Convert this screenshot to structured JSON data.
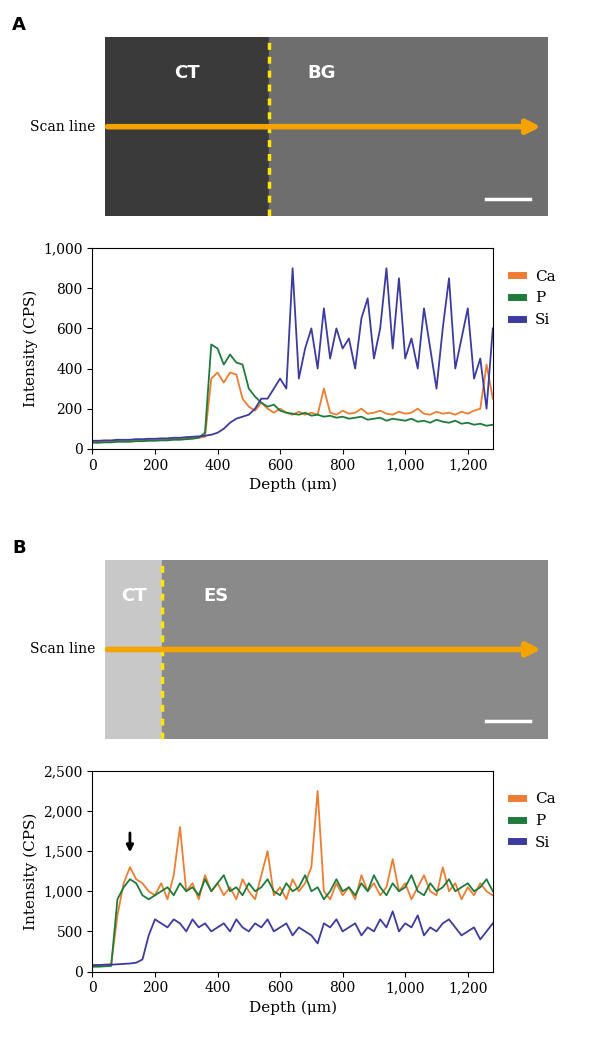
{
  "chart_data": [
    {
      "type": "line",
      "panel": "A",
      "image_text": {
        "left": "CT",
        "right": "BG",
        "scan": "Scan line"
      },
      "x_label": "Depth (μm)",
      "y_label": "Intensity (CPS)",
      "xlim": [
        0,
        1280
      ],
      "xticks": [
        0,
        200,
        400,
        600,
        800,
        {
          "value": 1000,
          "label": "1,000"
        },
        {
          "value": 1200,
          "label": "1,200"
        }
      ],
      "ylim": [
        0,
        1000
      ],
      "yticks": [
        0,
        200,
        400,
        600,
        800,
        {
          "value": 1000,
          "label": "1,000"
        }
      ],
      "legend": "right",
      "x": [
        0,
        20,
        40,
        60,
        80,
        100,
        120,
        140,
        160,
        180,
        200,
        220,
        240,
        260,
        280,
        300,
        320,
        340,
        360,
        380,
        400,
        420,
        440,
        460,
        480,
        500,
        520,
        540,
        560,
        580,
        600,
        620,
        640,
        660,
        680,
        700,
        720,
        740,
        760,
        780,
        800,
        820,
        840,
        860,
        880,
        900,
        920,
        940,
        960,
        980,
        1000,
        1020,
        1040,
        1060,
        1080,
        1100,
        1120,
        1140,
        1160,
        1180,
        1200,
        1220,
        1240,
        1260,
        1280
      ],
      "series": [
        {
          "name": "Ca",
          "color": "#ed7d31",
          "values": [
            35,
            35,
            38,
            38,
            40,
            40,
            42,
            40,
            42,
            45,
            45,
            45,
            48,
            48,
            50,
            52,
            55,
            55,
            60,
            350,
            380,
            330,
            380,
            370,
            250,
            210,
            190,
            230,
            200,
            180,
            200,
            180,
            170,
            185,
            170,
            180,
            170,
            300,
            180,
            170,
            190,
            175,
            180,
            200,
            175,
            180,
            190,
            175,
            170,
            185,
            175,
            180,
            200,
            175,
            170,
            185,
            175,
            180,
            170,
            185,
            175,
            190,
            200,
            420,
            250
          ]
        },
        {
          "name": "P",
          "color": "#1e7b3a",
          "values": [
            30,
            30,
            32,
            32,
            35,
            35,
            35,
            38,
            38,
            40,
            40,
            42,
            42,
            45,
            45,
            48,
            50,
            55,
            80,
            520,
            500,
            420,
            470,
            430,
            420,
            300,
            260,
            230,
            210,
            220,
            190,
            180,
            175,
            170,
            180,
            165,
            170,
            160,
            165,
            155,
            160,
            150,
            155,
            160,
            145,
            150,
            155,
            140,
            150,
            145,
            140,
            150,
            135,
            140,
            130,
            145,
            135,
            130,
            140,
            125,
            130,
            120,
            125,
            115,
            120
          ]
        },
        {
          "name": "Si",
          "color": "#3c3ca0",
          "values": [
            40,
            40,
            42,
            42,
            45,
            45,
            45,
            48,
            48,
            50,
            50,
            52,
            52,
            55,
            55,
            58,
            60,
            62,
            65,
            70,
            80,
            100,
            130,
            150,
            160,
            170,
            200,
            250,
            250,
            300,
            350,
            300,
            900,
            350,
            500,
            600,
            400,
            700,
            450,
            600,
            500,
            550,
            400,
            650,
            750,
            450,
            600,
            900,
            500,
            850,
            450,
            550,
            400,
            700,
            500,
            300,
            600,
            850,
            400,
            550,
            700,
            350,
            450,
            200,
            600
          ]
        }
      ]
    },
    {
      "type": "line",
      "panel": "B",
      "image_text": {
        "left": "CT",
        "right": "ES",
        "scan": "Scan line"
      },
      "x_label": "Depth (μm)",
      "y_label": "Intensity (CPS)",
      "xlim": [
        0,
        1280
      ],
      "xticks": [
        0,
        200,
        400,
        600,
        800,
        {
          "value": 1000,
          "label": "1,000"
        },
        {
          "value": 1200,
          "label": "1,200"
        }
      ],
      "ylim": [
        0,
        2500
      ],
      "yticks": [
        0,
        500,
        {
          "value": 1000,
          "label": "1,000"
        },
        {
          "value": 1500,
          "label": "1,500"
        },
        {
          "value": 2000,
          "label": "2,000"
        },
        {
          "value": 2500,
          "label": "2,500"
        }
      ],
      "legend": "right",
      "arrow": {
        "x": 120,
        "y": 1450
      },
      "x": [
        0,
        20,
        40,
        60,
        80,
        100,
        120,
        140,
        160,
        180,
        200,
        220,
        240,
        260,
        280,
        300,
        320,
        340,
        360,
        380,
        400,
        420,
        440,
        460,
        480,
        500,
        520,
        540,
        560,
        580,
        600,
        620,
        640,
        660,
        680,
        700,
        720,
        740,
        760,
        780,
        800,
        820,
        840,
        860,
        880,
        900,
        920,
        940,
        960,
        980,
        1000,
        1020,
        1040,
        1060,
        1080,
        1100,
        1120,
        1140,
        1160,
        1180,
        1200,
        1220,
        1240,
        1260,
        1280
      ],
      "series": [
        {
          "name": "Ca",
          "color": "#ed7d31",
          "values": [
            80,
            80,
            85,
            90,
            700,
            1100,
            1300,
            1150,
            1100,
            1000,
            950,
            1100,
            900,
            1200,
            1800,
            1000,
            1100,
            900,
            1200,
            1000,
            1100,
            950,
            1050,
            900,
            1150,
            1000,
            900,
            1200,
            1500,
            950,
            1050,
            900,
            1150,
            1000,
            1100,
            1300,
            2250,
            1000,
            900,
            1100,
            950,
            1050,
            900,
            1200,
            1000,
            1100,
            950,
            1050,
            1400,
            1000,
            1100,
            900,
            1050,
            1200,
            1000,
            950,
            1300,
            1000,
            1100,
            900,
            1050,
            950,
            1100,
            1000,
            950
          ]
        },
        {
          "name": "P",
          "color": "#1e7b3a",
          "values": [
            60,
            60,
            65,
            70,
            900,
            1050,
            1150,
            1100,
            950,
            900,
            950,
            1000,
            1050,
            950,
            1100,
            1000,
            1050,
            950,
            1150,
            1000,
            1100,
            1200,
            1000,
            1050,
            950,
            1100,
            1000,
            1050,
            1150,
            1000,
            950,
            1100,
            1000,
            1050,
            1200,
            1000,
            1050,
            900,
            1000,
            1150,
            1000,
            1050,
            950,
            1100,
            1000,
            1200,
            1050,
            950,
            1100,
            1000,
            1050,
            1200,
            1000,
            950,
            1100,
            1000,
            1050,
            1150,
            1000,
            1050,
            1100,
            1000,
            1050,
            1150,
            1000
          ]
        },
        {
          "name": "Si",
          "color": "#3c3ca0",
          "values": [
            80,
            80,
            85,
            85,
            90,
            95,
            100,
            110,
            150,
            450,
            650,
            600,
            550,
            650,
            600,
            500,
            650,
            550,
            600,
            500,
            550,
            600,
            500,
            650,
            550,
            500,
            600,
            550,
            650,
            500,
            550,
            600,
            450,
            550,
            500,
            450,
            350,
            600,
            550,
            650,
            500,
            550,
            600,
            450,
            550,
            500,
            650,
            550,
            750,
            500,
            600,
            550,
            700,
            450,
            550,
            500,
            600,
            650,
            550,
            450,
            500,
            550,
            400,
            500,
            600
          ]
        }
      ]
    }
  ]
}
